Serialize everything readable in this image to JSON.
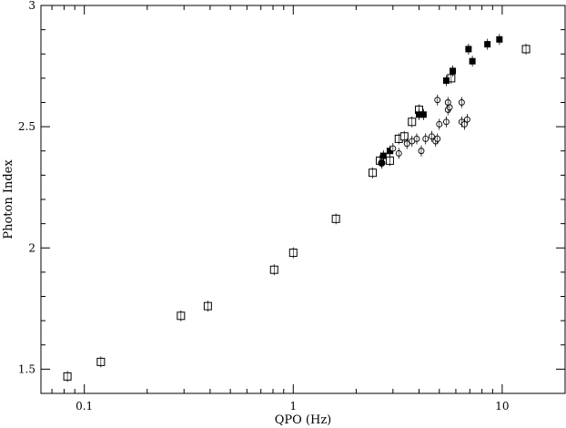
{
  "chart_data": {
    "type": "scatter",
    "title": "",
    "xlabel": "QPO (Hz)",
    "ylabel": "Photon Index",
    "xscale": "log",
    "xlim": [
      0.062,
      20
    ],
    "ylim": [
      1.4,
      3.0
    ],
    "grid": false,
    "legend": "none",
    "x_ticks": [
      {
        "value": 0.1,
        "label": "0.1"
      },
      {
        "value": 1,
        "label": "1"
      },
      {
        "value": 10,
        "label": "10"
      }
    ],
    "y_ticks": [
      {
        "value": 1.5,
        "label": "1.5"
      },
      {
        "value": 2,
        "label": "2"
      },
      {
        "value": 2.5,
        "label": "2.5"
      },
      {
        "value": 3,
        "label": "3"
      }
    ],
    "series": [
      {
        "marker": "open-square",
        "points": [
          {
            "x": 0.083,
            "y": 1.47
          },
          {
            "x": 0.12,
            "y": 1.53
          },
          {
            "x": 0.29,
            "y": 1.72
          },
          {
            "x": 0.39,
            "y": 1.76
          },
          {
            "x": 0.81,
            "y": 1.91
          },
          {
            "x": 1.0,
            "y": 1.98
          },
          {
            "x": 1.6,
            "y": 2.12
          },
          {
            "x": 2.4,
            "y": 2.31
          },
          {
            "x": 2.6,
            "y": 2.36
          },
          {
            "x": 2.9,
            "y": 2.36
          },
          {
            "x": 3.2,
            "y": 2.45
          },
          {
            "x": 3.4,
            "y": 2.46
          },
          {
            "x": 3.7,
            "y": 2.52
          },
          {
            "x": 4.0,
            "y": 2.57
          },
          {
            "x": 5.7,
            "y": 2.7
          },
          {
            "x": 13.0,
            "y": 2.82
          }
        ]
      },
      {
        "marker": "filled-square",
        "points": [
          {
            "x": 2.7,
            "y": 2.38
          },
          {
            "x": 2.9,
            "y": 2.4
          },
          {
            "x": 4.0,
            "y": 2.55
          },
          {
            "x": 4.2,
            "y": 2.55
          },
          {
            "x": 5.4,
            "y": 2.69
          },
          {
            "x": 5.8,
            "y": 2.73
          },
          {
            "x": 6.9,
            "y": 2.82
          },
          {
            "x": 7.2,
            "y": 2.77
          },
          {
            "x": 8.5,
            "y": 2.84
          },
          {
            "x": 9.7,
            "y": 2.86
          }
        ]
      },
      {
        "marker": "filled-circle",
        "points": [
          {
            "x": 2.65,
            "y": 2.35
          }
        ]
      },
      {
        "marker": "open-circle",
        "points": [
          {
            "x": 3.0,
            "y": 2.41
          },
          {
            "x": 3.2,
            "y": 2.39
          },
          {
            "x": 3.5,
            "y": 2.43
          },
          {
            "x": 3.7,
            "y": 2.44
          },
          {
            "x": 3.9,
            "y": 2.45
          },
          {
            "x": 4.1,
            "y": 2.4
          },
          {
            "x": 4.3,
            "y": 2.45
          },
          {
            "x": 4.6,
            "y": 2.46
          },
          {
            "x": 4.8,
            "y": 2.44
          },
          {
            "x": 4.9,
            "y": 2.45
          },
          {
            "x": 5.0,
            "y": 2.51
          },
          {
            "x": 5.4,
            "y": 2.52
          },
          {
            "x": 5.5,
            "y": 2.57
          },
          {
            "x": 5.6,
            "y": 2.58
          },
          {
            "x": 5.5,
            "y": 2.6
          },
          {
            "x": 4.9,
            "y": 2.61
          },
          {
            "x": 6.4,
            "y": 2.52
          },
          {
            "x": 6.6,
            "y": 2.51
          },
          {
            "x": 6.8,
            "y": 2.53
          },
          {
            "x": 6.4,
            "y": 2.6
          }
        ]
      }
    ]
  }
}
